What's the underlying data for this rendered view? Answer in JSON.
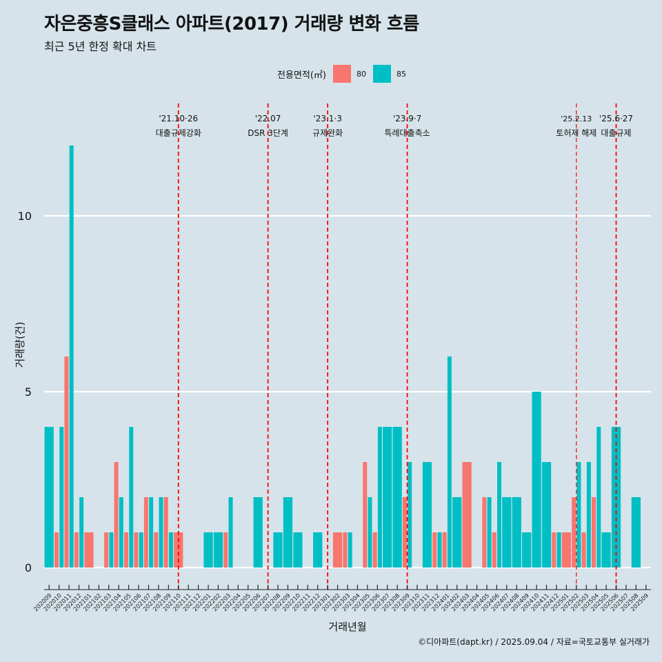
{
  "title": "자은중흥S클래스 아파트(2017) 거래량 변화 흐름",
  "subtitle": "최근 5년 한정 확대 차트",
  "caption": "©디아파트(dapt.kr) / 2025.09.04 / 자료=국토교통부 실거래가",
  "legend": {
    "title": "전용면적(㎡)",
    "items": [
      {
        "label": "80",
        "color": "#f8766d"
      },
      {
        "label": "85",
        "color": "#00bfc4"
      }
    ]
  },
  "chart_data": {
    "type": "bar",
    "xlabel": "거래년월",
    "ylabel": "거래량(건)",
    "ylim": [
      0,
      12
    ],
    "yticks": [
      0,
      5,
      10
    ],
    "grid": true,
    "legend_position": "top",
    "categories": [
      "202009",
      "202010",
      "202011",
      "202012",
      "202101",
      "202102",
      "202103",
      "202104",
      "202105",
      "202106",
      "202107",
      "202108",
      "202109",
      "202110",
      "202111",
      "202112",
      "202201",
      "202202",
      "202203",
      "202204",
      "202205",
      "202206",
      "202207",
      "202208",
      "202209",
      "202210",
      "202211",
      "202212",
      "202301",
      "202302",
      "202303",
      "202304",
      "202305",
      "202306",
      "202307",
      "202308",
      "202309",
      "202310",
      "202311",
      "202312",
      "202401",
      "202402",
      "202403",
      "202404",
      "202405",
      "202406",
      "202407",
      "202408",
      "202409",
      "202410",
      "202411",
      "202412",
      "202501",
      "202502",
      "202503",
      "202504",
      "202505",
      "202506",
      "202507",
      "202508",
      "202509"
    ],
    "series": [
      {
        "name": "80",
        "color": "#f8766d",
        "values": [
          0,
          1,
          6,
          1,
          1,
          0,
          1,
          3,
          1,
          1,
          2,
          1,
          2,
          1,
          0,
          0,
          0,
          0,
          1,
          0,
          0,
          0,
          0,
          0,
          0,
          0,
          0,
          0,
          0,
          1,
          1,
          0,
          3,
          1,
          0,
          0,
          2,
          0,
          0,
          1,
          1,
          0,
          3,
          0,
          2,
          1,
          0,
          0,
          0,
          0,
          0,
          1,
          1,
          2,
          1,
          2,
          0,
          0,
          0,
          0,
          0
        ]
      },
      {
        "name": "85",
        "color": "#00bfc4",
        "values": [
          4,
          4,
          12,
          2,
          0,
          0,
          1,
          2,
          4,
          1,
          2,
          2,
          1,
          0,
          0,
          0,
          1,
          1,
          2,
          0,
          0,
          2,
          0,
          1,
          2,
          1,
          0,
          1,
          0,
          0,
          1,
          0,
          2,
          4,
          4,
          4,
          3,
          0,
          3,
          1,
          6,
          2,
          0,
          0,
          2,
          3,
          2,
          2,
          1,
          5,
          3,
          1,
          0,
          3,
          3,
          4,
          1,
          4,
          0,
          2,
          0
        ]
      }
    ],
    "events": [
      {
        "date": "'21.10·26",
        "label": "대출규제강화",
        "month": "202110"
      },
      {
        "date": "'22.07",
        "label": "DSR 3단계",
        "month": "202207"
      },
      {
        "date": "'23.1·3",
        "label": "규제완화",
        "month": "202301"
      },
      {
        "date": "'23.9·7",
        "label": "특례대출축소",
        "month": "202309"
      },
      {
        "date": "'25.2.13",
        "label": "토허제 해제",
        "month": "202502"
      },
      {
        "date": "'25.6·27",
        "label": "대출규제",
        "month": "202506"
      }
    ]
  }
}
